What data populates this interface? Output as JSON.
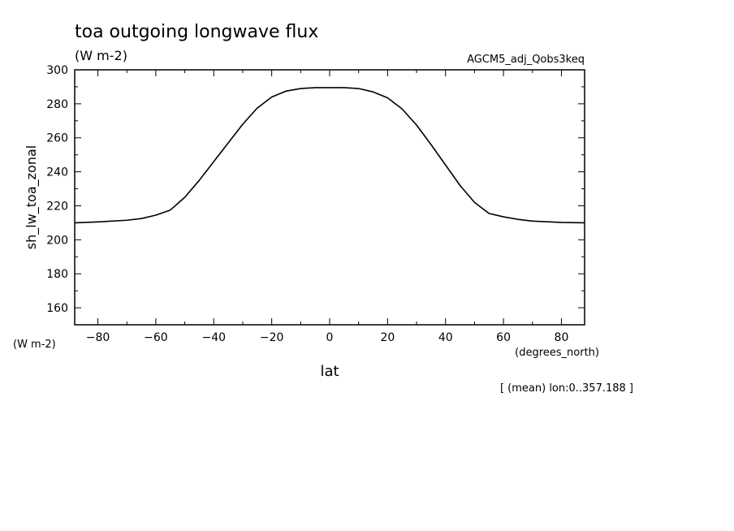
{
  "header": {
    "title": "toa outgoing longwave flux",
    "units": "(W m-2)",
    "dataset": "AGCM5_adj_Qobs3keq"
  },
  "axes": {
    "left_units": "(W m-2)",
    "x_units": "(degrees_north)",
    "footnote": "[ (mean) lon:0..357.188 ]"
  },
  "chart_data": {
    "type": "line",
    "xlabel": "lat",
    "ylabel": "sh_lw_toa_zonal",
    "xlim": [
      -88,
      88
    ],
    "ylim": [
      150,
      300
    ],
    "xticks": [
      -80,
      -60,
      -40,
      -20,
      0,
      20,
      40,
      60,
      80
    ],
    "yticks": [
      160,
      180,
      200,
      220,
      240,
      260,
      280,
      300
    ],
    "grid": false,
    "series": [
      {
        "x": [
          -88,
          -80,
          -70,
          -65,
          -60,
          -55,
          -50,
          -45,
          -40,
          -35,
          -30,
          -25,
          -20,
          -15,
          -10,
          -5,
          0,
          5,
          10,
          15,
          20,
          25,
          30,
          35,
          40,
          45,
          50,
          55,
          60,
          65,
          70,
          80,
          88
        ],
        "values": [
          210,
          210.5,
          211.5,
          212.5,
          214.5,
          217.5,
          225,
          235,
          246,
          257,
          268,
          277.5,
          284,
          287.5,
          289,
          289.5,
          289.5,
          289.5,
          289,
          287,
          283.5,
          277,
          267.5,
          256,
          244,
          232,
          222,
          215.5,
          213.5,
          212,
          211,
          210.2,
          210
        ]
      }
    ]
  }
}
